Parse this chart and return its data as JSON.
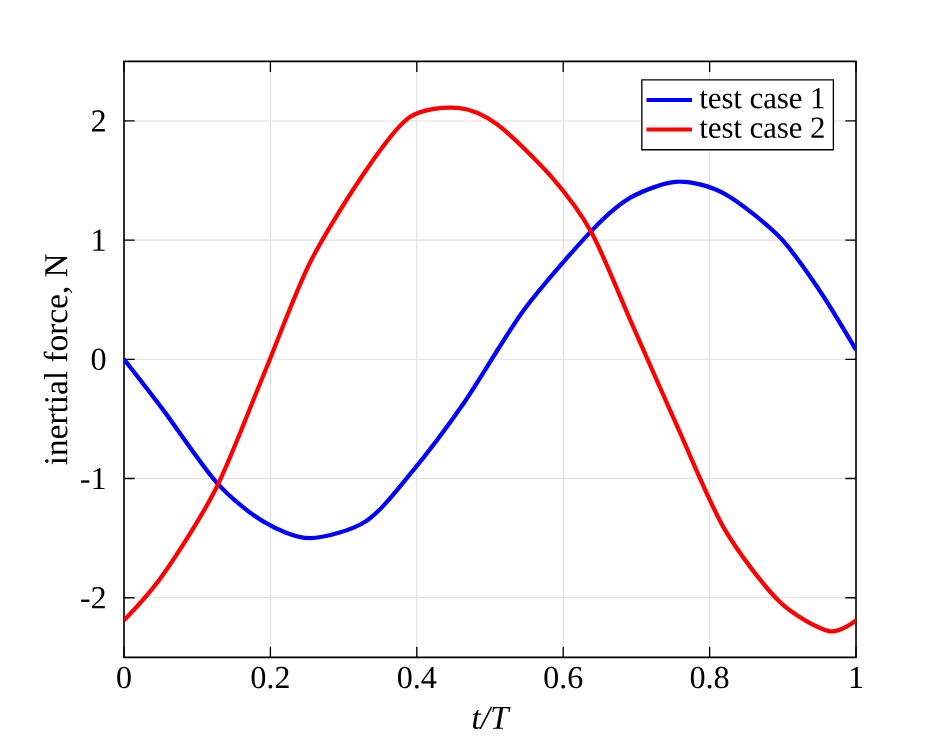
{
  "chart_data": {
    "type": "line",
    "xlabel": "t/T",
    "ylabel": "inertial force, N",
    "xlim": [
      0,
      1
    ],
    "ylim": [
      -2.5,
      2.5
    ],
    "xticks": [
      0,
      0.2,
      0.4,
      0.6,
      0.8,
      1
    ],
    "yticks": [
      -2,
      -1,
      0,
      1,
      2
    ],
    "grid": true,
    "legend": "top right",
    "line_style": "solid",
    "marker": "none",
    "series": [
      {
        "name": "test case 1",
        "color": "#0000ff",
        "x": [
          0,
          0.053,
          0.126,
          0.19,
          0.254,
          0.33,
          0.39,
          0.465,
          0.547,
          0.639,
          0.693,
          0.757,
          0.82,
          0.895,
          0.95,
          1
        ],
        "values": [
          0,
          -0.42,
          -1.03,
          -1.36,
          -1.5,
          -1.36,
          -0.97,
          -0.36,
          0.42,
          1.08,
          1.36,
          1.49,
          1.39,
          1.03,
          0.58,
          0.08
        ]
      },
      {
        "name": "test case 2",
        "color": "#ff0000",
        "x": [
          0,
          0.053,
          0.126,
          0.19,
          0.254,
          0.33,
          0.39,
          0.456,
          0.51,
          0.584,
          0.639,
          0.693,
          0.757,
          0.82,
          0.895,
          0.963,
          1
        ],
        "values": [
          -2.19,
          -1.81,
          -1.08,
          -0.14,
          0.81,
          1.58,
          2.03,
          2.11,
          1.97,
          1.53,
          1.06,
          0.31,
          -0.58,
          -1.42,
          -2.03,
          -2.28,
          -2.19
        ]
      }
    ]
  }
}
